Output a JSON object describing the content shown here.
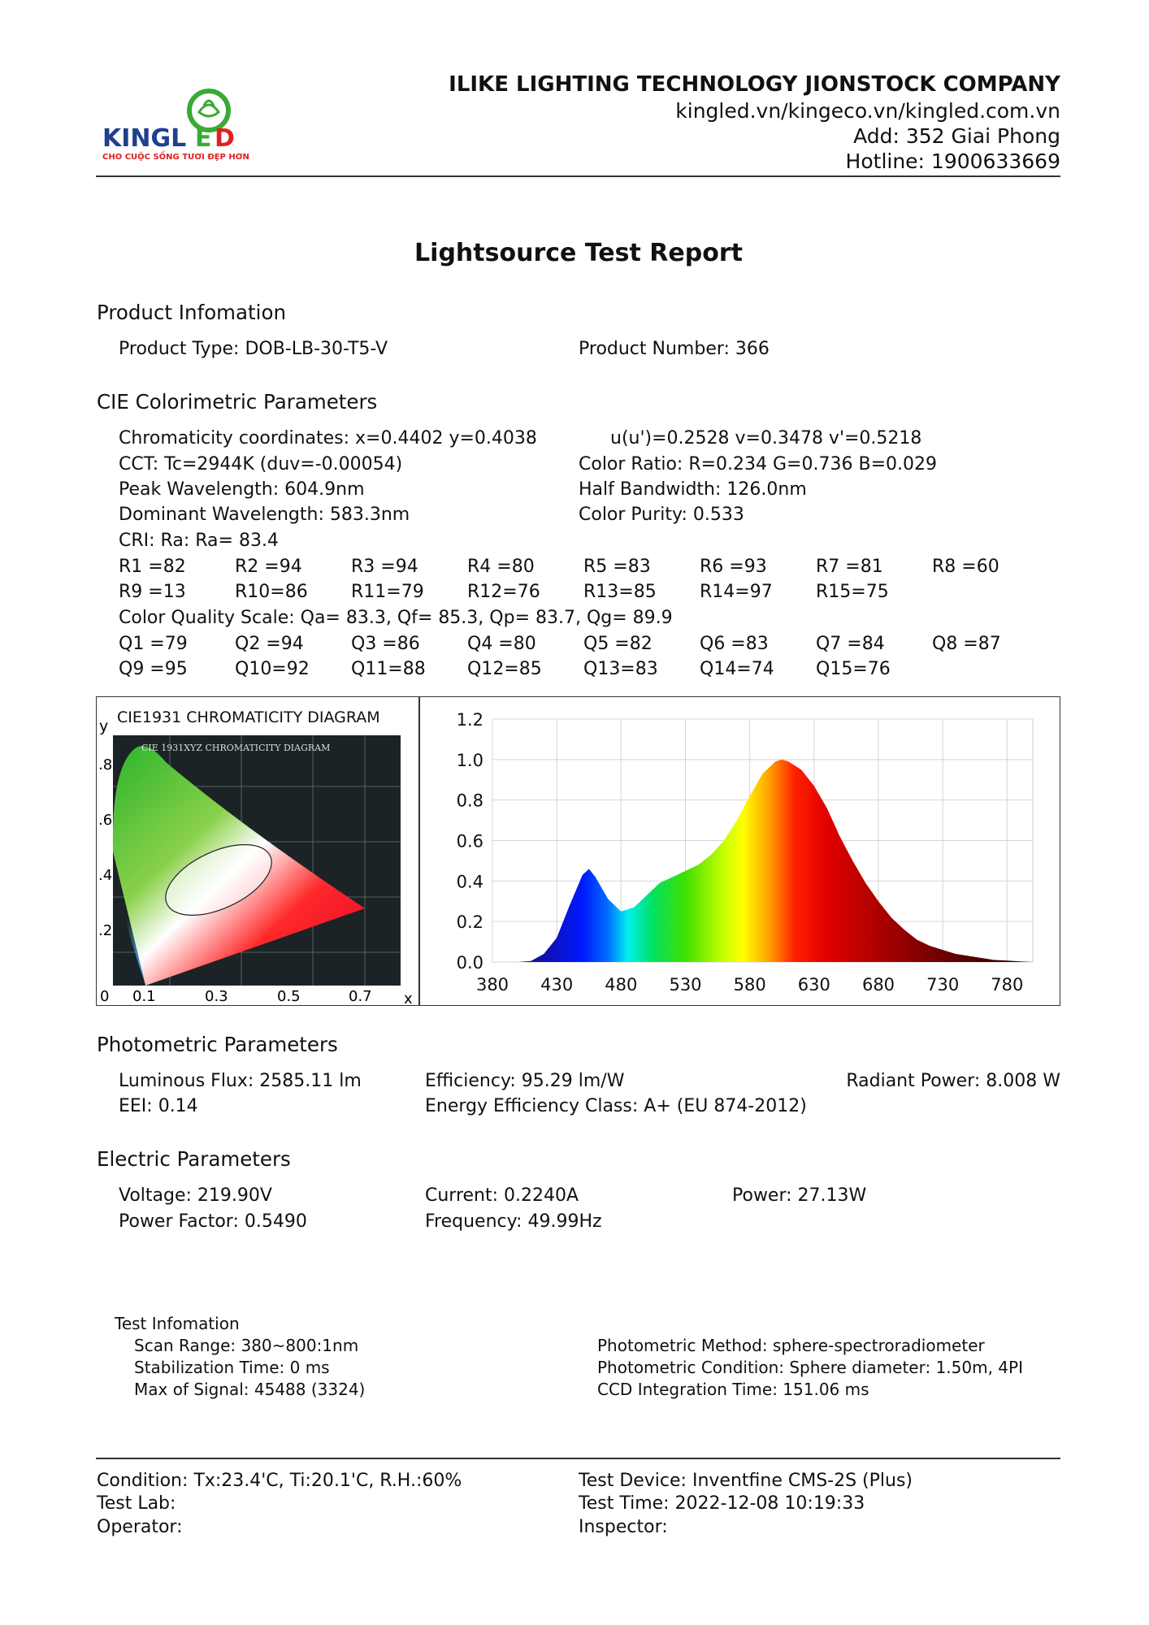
{
  "header": {
    "company": "ILIKE LIGHTING TECHNOLOGY JIONSTOCK COMPANY",
    "websites": "kingled.vn/kingeco.vn/kingled.com.vn",
    "address": "Add: 352 Giai Phong",
    "hotline": "Hotline: 1900633669",
    "logo": {
      "text": "KINGLED",
      "slogan": "CHO CUỘC SỐNG TƯƠI ĐẸP HƠN",
      "colors": {
        "blue": "#1f3f8f",
        "green": "#3aaa35",
        "red": "#e02020"
      }
    }
  },
  "title": "Lightsource Test Report",
  "product": {
    "heading": "Product Infomation",
    "type": "Product Type: DOB-LB-30-T5-V",
    "number": "Product Number: 366"
  },
  "cie": {
    "heading": "CIE Colorimetric Parameters",
    "chromaticity": "Chromaticity coordinates: x=0.4402 y=0.4038",
    "uv": "u(u')=0.2528 v=0.3478 v'=0.5218",
    "cct": "CCT: Tc=2944K (duv=-0.00054)",
    "color_ratio": "Color Ratio: R=0.234  G=0.736  B=0.029",
    "peak": "Peak Wavelength: 604.9nm",
    "half_bandwidth": "Half Bandwidth: 126.0nm",
    "dominant": "Dominant Wavelength: 583.3nm",
    "purity": "Color Purity: 0.533",
    "cri": "CRI: Ra: Ra= 83.4",
    "r_row1": [
      "R1 =82",
      "R2 =94",
      "R3 =94",
      "R4 =80",
      "R5 =83",
      "R6 =93",
      "R7 =81",
      "R8 =60"
    ],
    "r_row2": [
      "R9 =13",
      "R10=86",
      "R11=79",
      "R12=76",
      "R13=85",
      "R14=97",
      "R15=75"
    ],
    "cqs": "Color Quality Scale: Qa= 83.3, Qf= 85.3, Qp= 83.7, Qg= 89.9",
    "q_row1": [
      "Q1 =79",
      "Q2 =94",
      "Q3 =86",
      "Q4 =80",
      "Q5 =82",
      "Q6 =83",
      "Q7 =84",
      "Q8 =87"
    ],
    "q_row2": [
      "Q9 =95",
      "Q10=92",
      "Q11=88",
      "Q12=85",
      "Q13=83",
      "Q14=74",
      "Q15=76"
    ]
  },
  "cie_diagram": {
    "title": "CIE1931 CHROMATICITY DIAGRAM",
    "inner_title": "CIE 1931XYZ CHROMATICITY DIAGRAM",
    "y_label": "y",
    "x_label": "x",
    "y_ticks": [
      ".8",
      ".6",
      ".4",
      ".2"
    ],
    "x_ticks": [
      "0",
      "0.1",
      "0.3",
      "0.5",
      "0.7"
    ]
  },
  "chart_data": {
    "type": "area",
    "title": "",
    "xlabel": "",
    "ylabel": "",
    "xlim": [
      380,
      800
    ],
    "ylim": [
      0,
      1.2
    ],
    "grid": true,
    "x_ticks": [
      380,
      430,
      480,
      530,
      580,
      630,
      680,
      730,
      780
    ],
    "y_ticks": [
      "0.0",
      "0.2",
      "0.4",
      "0.6",
      "0.8",
      "1.0",
      "1.2"
    ],
    "x": [
      380,
      390,
      400,
      410,
      420,
      430,
      440,
      450,
      455,
      460,
      470,
      480,
      490,
      500,
      510,
      520,
      530,
      540,
      550,
      560,
      570,
      580,
      590,
      600,
      605,
      610,
      620,
      630,
      640,
      650,
      660,
      670,
      680,
      690,
      700,
      710,
      720,
      730,
      740,
      750,
      760,
      770,
      780,
      790,
      800
    ],
    "y": [
      0,
      0,
      0,
      0.005,
      0.04,
      0.12,
      0.28,
      0.43,
      0.46,
      0.42,
      0.31,
      0.25,
      0.27,
      0.33,
      0.39,
      0.42,
      0.45,
      0.48,
      0.53,
      0.6,
      0.7,
      0.82,
      0.93,
      0.99,
      1.0,
      0.99,
      0.95,
      0.87,
      0.76,
      0.62,
      0.5,
      0.39,
      0.3,
      0.22,
      0.16,
      0.11,
      0.08,
      0.06,
      0.04,
      0.03,
      0.02,
      0.01,
      0.007,
      0.003,
      0
    ],
    "fill": "spectral color gradient"
  },
  "photometric": {
    "heading": "Photometric Parameters",
    "flux": "Luminous Flux: 2585.11 lm",
    "efficiency": "Efficiency: 95.29 lm/W",
    "radiant": "Radiant Power: 8.008 W",
    "eei": "EEI:  0.14",
    "class": "Energy Efficiency Class: A+ (EU 874-2012)"
  },
  "electric": {
    "heading": "Electric Parameters",
    "voltage": "Voltage: 219.90V",
    "current": "Current: 0.2240A",
    "power": "Power: 27.13W",
    "pf": "Power Factor: 0.5490",
    "freq": "Frequency: 49.99Hz"
  },
  "test": {
    "heading": "Test Infomation",
    "scan": "Scan Range: 380~800:1nm",
    "stab": "Stabilization Time: 0 ms",
    "max": "Max of Signal: 45488 (3324)",
    "method": "Photometric Method: sphere-spectroradiometer",
    "condition": "Photometric Condition: Sphere diameter: 1.50m, 4PI",
    "ccd": "CCD Integration Time: 151.06 ms"
  },
  "footer": {
    "condition": "Condition: Tx:23.4'C, Ti:20.1'C, R.H.:60%",
    "lab": "Test Lab:",
    "operator": "Operator:",
    "device": "Test Device: Inventfine CMS-2S (Plus)",
    "time": "Test Time: 2022-12-08 10:19:33",
    "inspector": "Inspector:"
  }
}
